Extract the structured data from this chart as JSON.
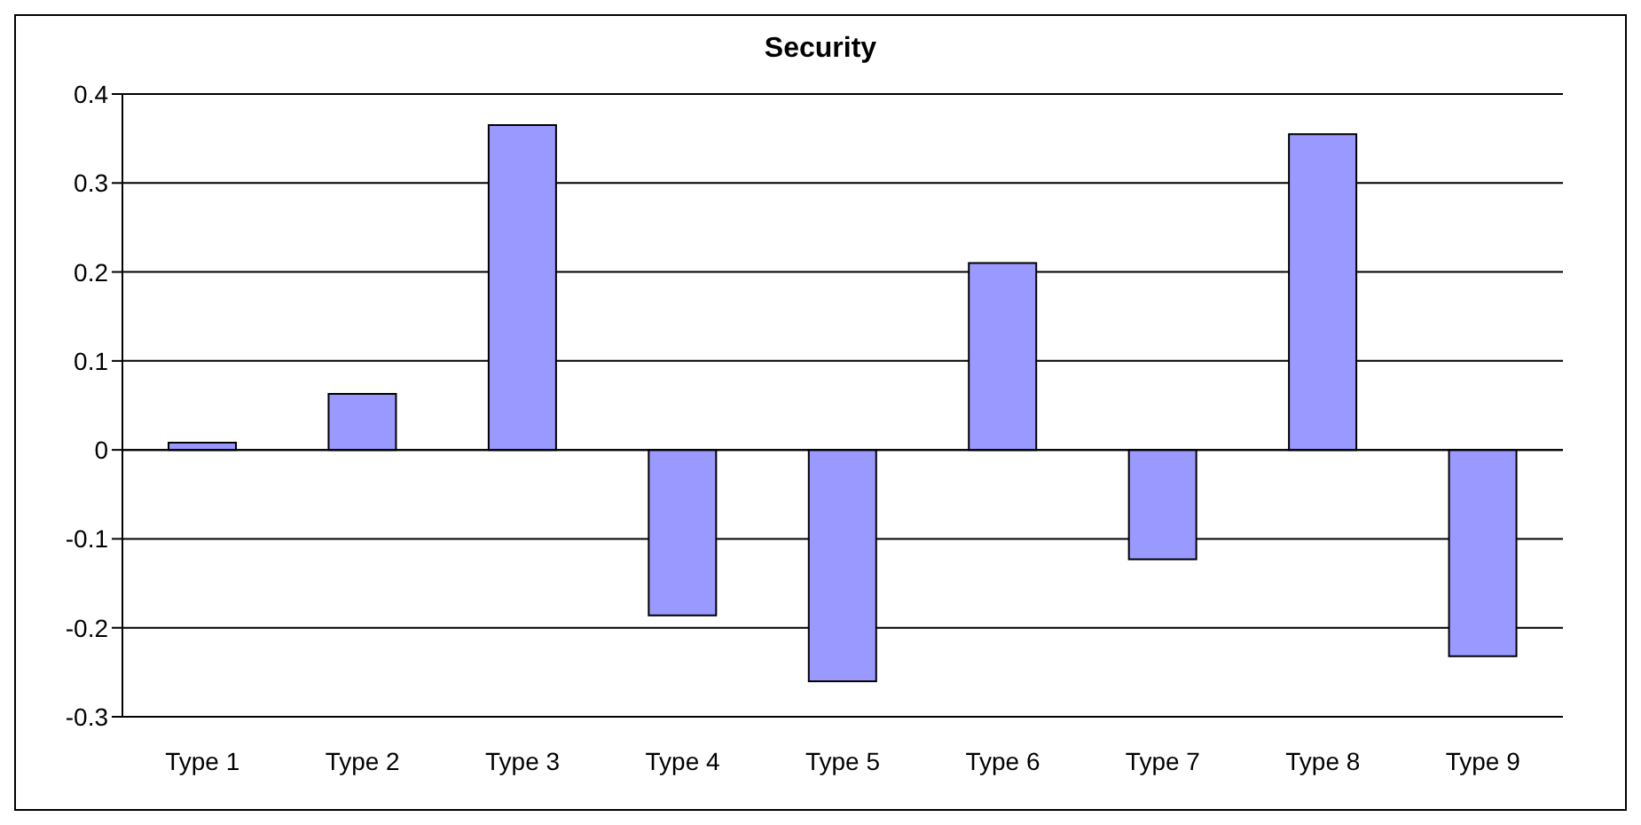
{
  "chart_data": {
    "type": "bar",
    "title": "Security",
    "categories": [
      "Type 1",
      "Type 2",
      "Type 3",
      "Type 4",
      "Type 5",
      "Type 6",
      "Type 7",
      "Type 8",
      "Type 9"
    ],
    "values": [
      0.008,
      0.063,
      0.365,
      -0.186,
      -0.26,
      0.21,
      -0.123,
      0.355,
      -0.232
    ],
    "color": "#9999ff",
    "ylim": [
      -0.3,
      0.4
    ],
    "yticks": [
      -0.3,
      -0.2,
      -0.1,
      0,
      0.1,
      0.2,
      0.3,
      0.4
    ],
    "grid": "y"
  }
}
